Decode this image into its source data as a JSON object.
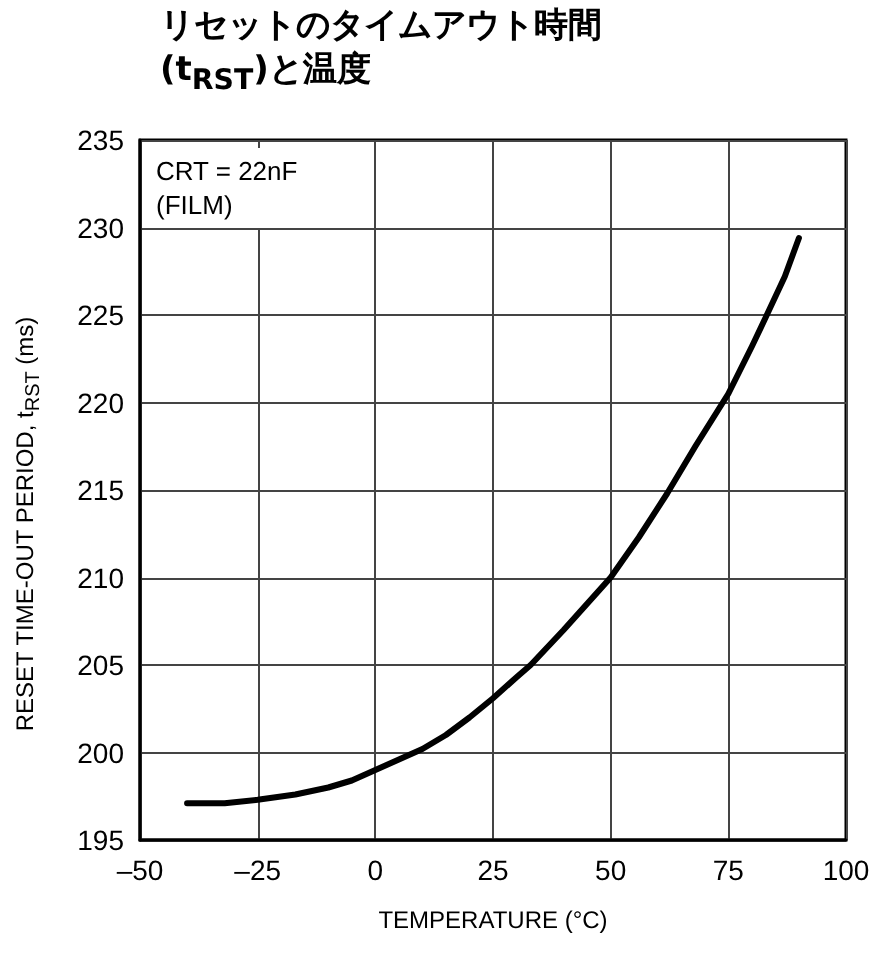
{
  "chart_data": {
    "type": "line",
    "title": "リセットのタイムアウト時間\n(t$_{RST}$)と温度",
    "xlabel": "TEMPERATURE (°C)",
    "ylabel": "RESET TIME-OUT PERIOD, t$_{RST}$ (ms)",
    "annotations": [
      "CRT = 22nF\n(FILM)"
    ],
    "x": [
      -40,
      -32,
      -25,
      -17,
      -10,
      -5,
      0,
      5,
      10,
      15,
      20,
      25,
      30,
      33,
      40,
      45,
      50,
      56,
      62,
      68,
      75,
      80,
      83,
      87,
      90
    ],
    "series": [
      {
        "color": "#000000",
        "values": [
          197.1,
          197.1,
          197.3,
          197.6,
          198.0,
          198.4,
          199.0,
          199.6,
          200.2,
          201.0,
          202.0,
          203.1,
          204.3,
          205.0,
          207.0,
          208.5,
          210.0,
          212.3,
          214.8,
          217.5,
          220.5,
          223.2,
          224.9,
          227.2,
          229.4
        ]
      }
    ],
    "xlim": [
      -50,
      100
    ],
    "xticks": [
      {
        "value": -50,
        "label": "–50"
      },
      {
        "value": -25,
        "label": "–25"
      },
      0,
      25,
      50,
      75,
      100
    ],
    "ylim": [
      195,
      235
    ],
    "yticks": [
      195,
      200,
      205,
      210,
      215,
      220,
      225,
      230,
      235
    ],
    "grid": true,
    "marker": "none",
    "line_style": "solid"
  }
}
